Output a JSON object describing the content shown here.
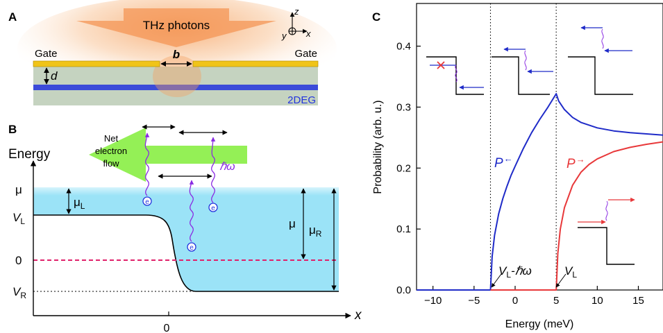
{
  "panels": {
    "a": {
      "label": "A",
      "photons_label": "THz photons",
      "gate_left": "Gate",
      "gate_right": "Gate",
      "gap_label": "b",
      "depth_label": "d",
      "layer_label": "2DEG",
      "axes": {
        "z": "z",
        "y": "y",
        "x": "x"
      },
      "colors": {
        "gate": "#f0c419",
        "substrate": "#c5d3c0",
        "twodeg": "#2233dd",
        "photons": "#f5a060"
      }
    },
    "b": {
      "label": "B",
      "y_title": "Energy",
      "x_axis_label": "x",
      "x_tick": "0",
      "level_mu": "μ",
      "level_vl": "V",
      "level_vl_sub": "L",
      "level_zero": "0",
      "level_vr": "V",
      "level_vr_sub": "R",
      "mu_l": "μ",
      "mu_l_sub": "L",
      "mu_mid": "μ",
      "mu_r": "μ",
      "mu_r_sub": "R",
      "flow_label": [
        "Net",
        "electron",
        "flow"
      ],
      "photon_label": "ℏω",
      "electron_symbol": "e",
      "colors": {
        "fermi_sea": "#9be3f7",
        "arrow": "#88ee44",
        "photon": "#8a2be2",
        "zero_line": "#e0206a"
      }
    },
    "c": {
      "label": "C",
      "ylabel": "Probability (arb. u.)",
      "xlabel": "Energy (meV)",
      "annotation_left": {
        "main": "V",
        "sub": "L",
        "tail": "-ℏω"
      },
      "annotation_right": {
        "main": "V",
        "sub": "L"
      },
      "colors": {
        "p_left": "#1f2bc8",
        "p_right": "#e8383a"
      }
    }
  },
  "chart_data": {
    "type": "line",
    "title": "",
    "xlabel": "Energy (meV)",
    "ylabel": "Probability (arb. u.)",
    "xlim": [
      -12,
      18
    ],
    "ylim": [
      0,
      0.47
    ],
    "xticks": [
      -10,
      -5,
      0,
      5,
      10,
      15
    ],
    "yticks": [
      0.0,
      0.1,
      0.2,
      0.3,
      0.4
    ],
    "xtick_labels": [
      "−10",
      "−5",
      "0",
      "5",
      "10",
      "15"
    ],
    "ytick_labels": [
      "0.0",
      "0.1",
      "0.2",
      "0.3",
      "0.4"
    ],
    "grid": false,
    "threshold_lines": [
      -3,
      5
    ],
    "series": [
      {
        "name": "P←",
        "label_main": "P",
        "label_arrow": "←",
        "color": "#1f2bc8",
        "x": [
          -12,
          -3,
          -2.8,
          -2.5,
          -2,
          -1.5,
          -1,
          -0.5,
          0,
          1,
          2,
          3,
          4,
          5,
          5.3,
          6,
          7,
          8,
          10,
          12,
          14,
          16,
          18
        ],
        "y": [
          0,
          0,
          0.055,
          0.09,
          0.125,
          0.15,
          0.17,
          0.188,
          0.203,
          0.232,
          0.258,
          0.28,
          0.3,
          0.322,
          0.31,
          0.296,
          0.283,
          0.275,
          0.266,
          0.261,
          0.258,
          0.256,
          0.254
        ]
      },
      {
        "name": "P→",
        "label_main": "P",
        "label_arrow": "→",
        "color": "#e8383a",
        "x": [
          -3,
          5,
          5.2,
          5.5,
          6,
          7,
          8,
          9,
          10,
          12,
          14,
          16,
          18
        ],
        "y": [
          0,
          0,
          0.06,
          0.1,
          0.135,
          0.172,
          0.193,
          0.206,
          0.215,
          0.227,
          0.234,
          0.239,
          0.243
        ]
      }
    ]
  }
}
